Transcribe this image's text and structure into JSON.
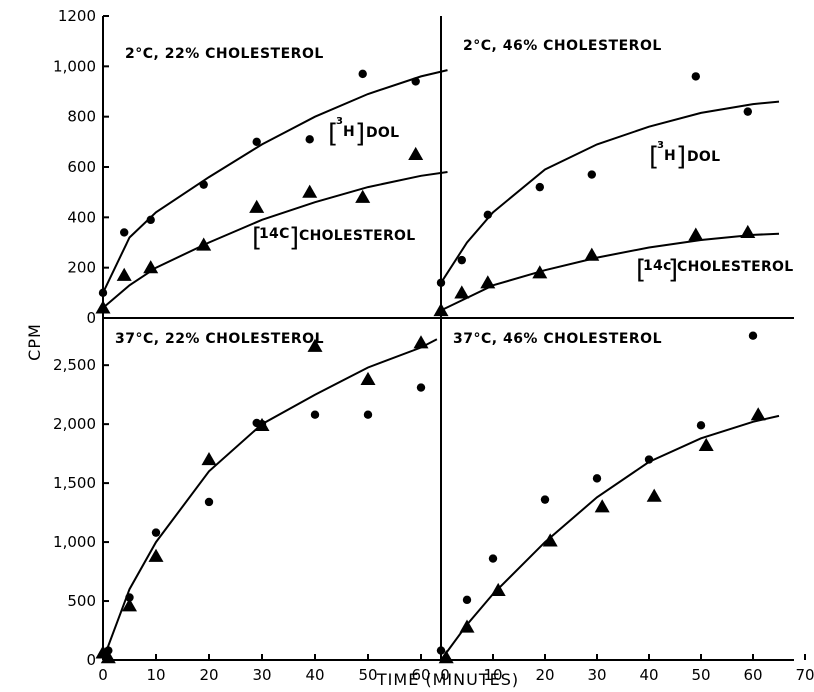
{
  "chart_data": {
    "type": "scatter",
    "xlabel": "TIME (MINUTES)",
    "ylabel": "CPM",
    "x_ticks": [
      0,
      10,
      20,
      30,
      40,
      50,
      60,
      70
    ],
    "panels": [
      {
        "id": "top-left",
        "title": "2°C, 22% CHOLESTEROL",
        "xlim": [
          0,
          65
        ],
        "ylim": [
          0,
          1200
        ],
        "y_ticks": [
          0,
          200,
          400,
          600,
          800,
          1000,
          1200
        ],
        "y_tick_labels": [
          "0",
          "200",
          "400",
          "600",
          "800",
          "1,000",
          "1200"
        ],
        "series": [
          {
            "name": "[3H] DOL",
            "marker": "circle",
            "x": [
              0,
              4,
              9,
              19,
              29,
              39,
              49,
              59
            ],
            "y": [
              100,
              340,
              390,
              530,
              700,
              710,
              970,
              940
            ],
            "fit": [
              [
                0,
                100
              ],
              [
                5,
                320
              ],
              [
                10,
                420
              ],
              [
                20,
                560
              ],
              [
                30,
                690
              ],
              [
                40,
                800
              ],
              [
                50,
                890
              ],
              [
                60,
                960
              ],
              [
                65,
                985
              ]
            ]
          },
          {
            "name": "[14C] CHOLESTEROL",
            "marker": "triangle",
            "x": [
              0,
              4,
              9,
              19,
              29,
              39,
              49,
              59
            ],
            "y": [
              40,
              170,
              200,
              290,
              440,
              500,
              480,
              650
            ],
            "fit": [
              [
                0,
                40
              ],
              [
                5,
                130
              ],
              [
                10,
                200
              ],
              [
                20,
                300
              ],
              [
                30,
                390
              ],
              [
                40,
                460
              ],
              [
                50,
                520
              ],
              [
                60,
                565
              ],
              [
                65,
                580
              ]
            ]
          }
        ]
      },
      {
        "id": "top-right",
        "title": "2°C, 46% CHOLESTEROL",
        "xlim": [
          0,
          65
        ],
        "ylim": [
          0,
          1200
        ],
        "series": [
          {
            "name": "[3H] DOL",
            "marker": "circle",
            "x": [
              0,
              4,
              9,
              19,
              29,
              49,
              59
            ],
            "y": [
              140,
              230,
              410,
              520,
              570,
              960,
              820
            ],
            "fit": [
              [
                0,
                140
              ],
              [
                5,
                300
              ],
              [
                10,
                420
              ],
              [
                20,
                590
              ],
              [
                30,
                690
              ],
              [
                40,
                760
              ],
              [
                50,
                815
              ],
              [
                60,
                850
              ],
              [
                65,
                860
              ]
            ]
          },
          {
            "name": "[14C] CHOLESTEROL",
            "marker": "triangle",
            "x": [
              0,
              4,
              9,
              19,
              29,
              49,
              59
            ],
            "y": [
              30,
              100,
              140,
              180,
              250,
              330,
              340
            ],
            "fit": [
              [
                0,
                30
              ],
              [
                5,
                80
              ],
              [
                10,
                130
              ],
              [
                20,
                190
              ],
              [
                30,
                240
              ],
              [
                40,
                280
              ],
              [
                50,
                310
              ],
              [
                60,
                330
              ],
              [
                65,
                335
              ]
            ]
          }
        ],
        "curve_labels": [
          "[3H] DOL",
          "[14C]CHOLESTEROL"
        ]
      },
      {
        "id": "bottom-left",
        "title": "37°C, 22% CHOLESTEROL",
        "xlim": [
          0,
          65
        ],
        "ylim": [
          0,
          2900
        ],
        "y_ticks": [
          0,
          500,
          1000,
          1500,
          2000,
          2500
        ],
        "y_tick_labels": [
          "0",
          "500",
          "1,000",
          "1,500",
          "2,000",
          "2,500"
        ],
        "series": [
          {
            "name": "circles",
            "marker": "circle",
            "x": [
              0,
              1,
              5,
              10,
              20,
              29,
              30,
              40,
              50,
              60
            ],
            "y": [
              50,
              80,
              530,
              1080,
              1340,
              2010,
              2000,
              2080,
              2080,
              2310
            ]
          },
          {
            "name": "triangles",
            "marker": "triangle",
            "x": [
              0,
              1,
              5,
              10,
              20,
              30,
              40,
              50,
              60
            ],
            "y": [
              60,
              20,
              460,
              880,
              1700,
              1990,
              2660,
              2380,
              2690
            ]
          }
        ],
        "fit": [
          [
            0,
            0
          ],
          [
            5,
            600
          ],
          [
            10,
            1000
          ],
          [
            20,
            1600
          ],
          [
            30,
            2000
          ],
          [
            40,
            2250
          ],
          [
            50,
            2480
          ],
          [
            60,
            2650
          ],
          [
            63,
            2720
          ]
        ]
      },
      {
        "id": "bottom-right",
        "title": "37°C, 46% CHOLESTEROL",
        "xlim": [
          0,
          72
        ],
        "ylim": [
          0,
          2900
        ],
        "series": [
          {
            "name": "circles",
            "marker": "circle",
            "x": [
              0,
              5,
              10,
              20,
              30,
              40,
              50,
              60
            ],
            "y": [
              80,
              510,
              860,
              1360,
              1540,
              1700,
              1990,
              2750
            ]
          },
          {
            "name": "triangles",
            "marker": "triangle",
            "x": [
              1,
              5,
              11,
              21,
              31,
              41,
              51,
              61
            ],
            "y": [
              20,
              280,
              590,
              1010,
              1300,
              1390,
              1820,
              2080
            ]
          }
        ],
        "fit": [
          [
            0,
            0
          ],
          [
            5,
            300
          ],
          [
            10,
            560
          ],
          [
            20,
            1000
          ],
          [
            30,
            1380
          ],
          [
            40,
            1680
          ],
          [
            50,
            1880
          ],
          [
            60,
            2020
          ],
          [
            65,
            2070
          ]
        ]
      }
    ]
  }
}
